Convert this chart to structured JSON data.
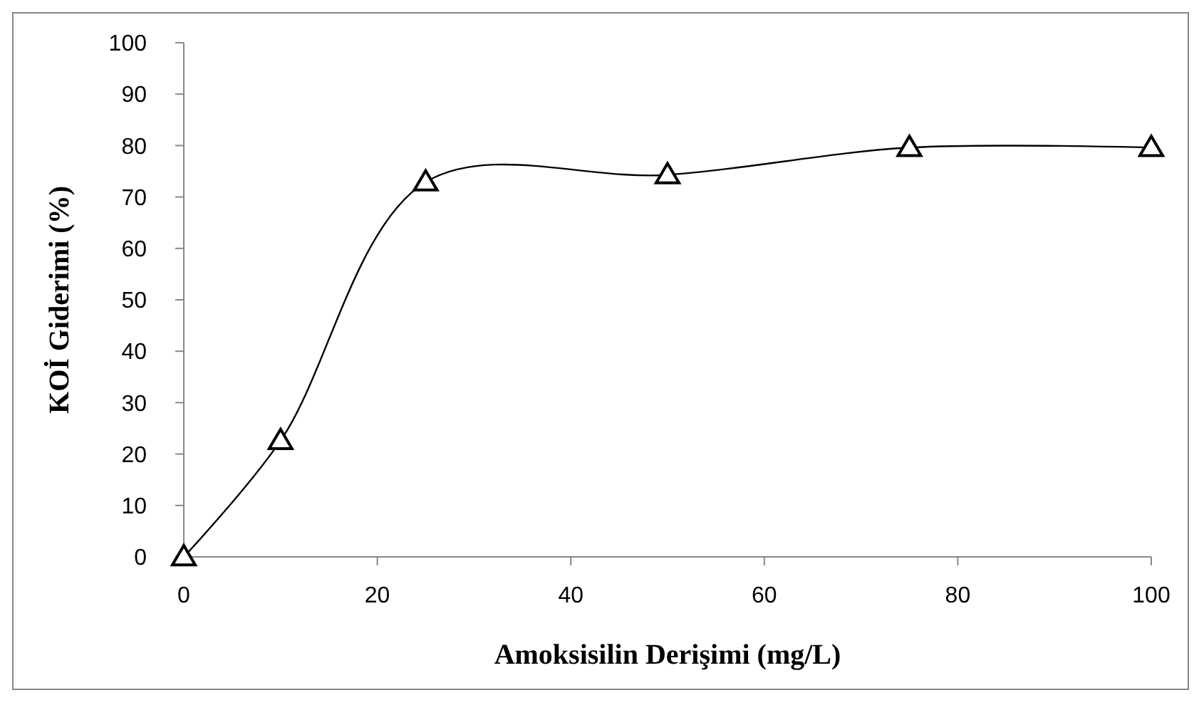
{
  "chart_data": {
    "type": "line",
    "xlabel": "Amoksisilin Derişimi (mg/L)",
    "ylabel": "KOİ Giderimi (%)",
    "x": [
      0,
      10,
      25,
      50,
      75,
      100
    ],
    "series": [
      {
        "color": "#000000",
        "values": [
          0,
          22.6,
          72.9,
          74.3,
          79.6,
          79.6
        ]
      }
    ],
    "xlim": [
      0,
      100
    ],
    "xticks": [
      0,
      20,
      40,
      60,
      80,
      100
    ],
    "ylim": [
      0,
      100
    ],
    "yticks": [
      0,
      10,
      20,
      30,
      40,
      50,
      60,
      70,
      80,
      90,
      100
    ],
    "marker": "triangle",
    "line_style": "solid",
    "grid": false
  }
}
